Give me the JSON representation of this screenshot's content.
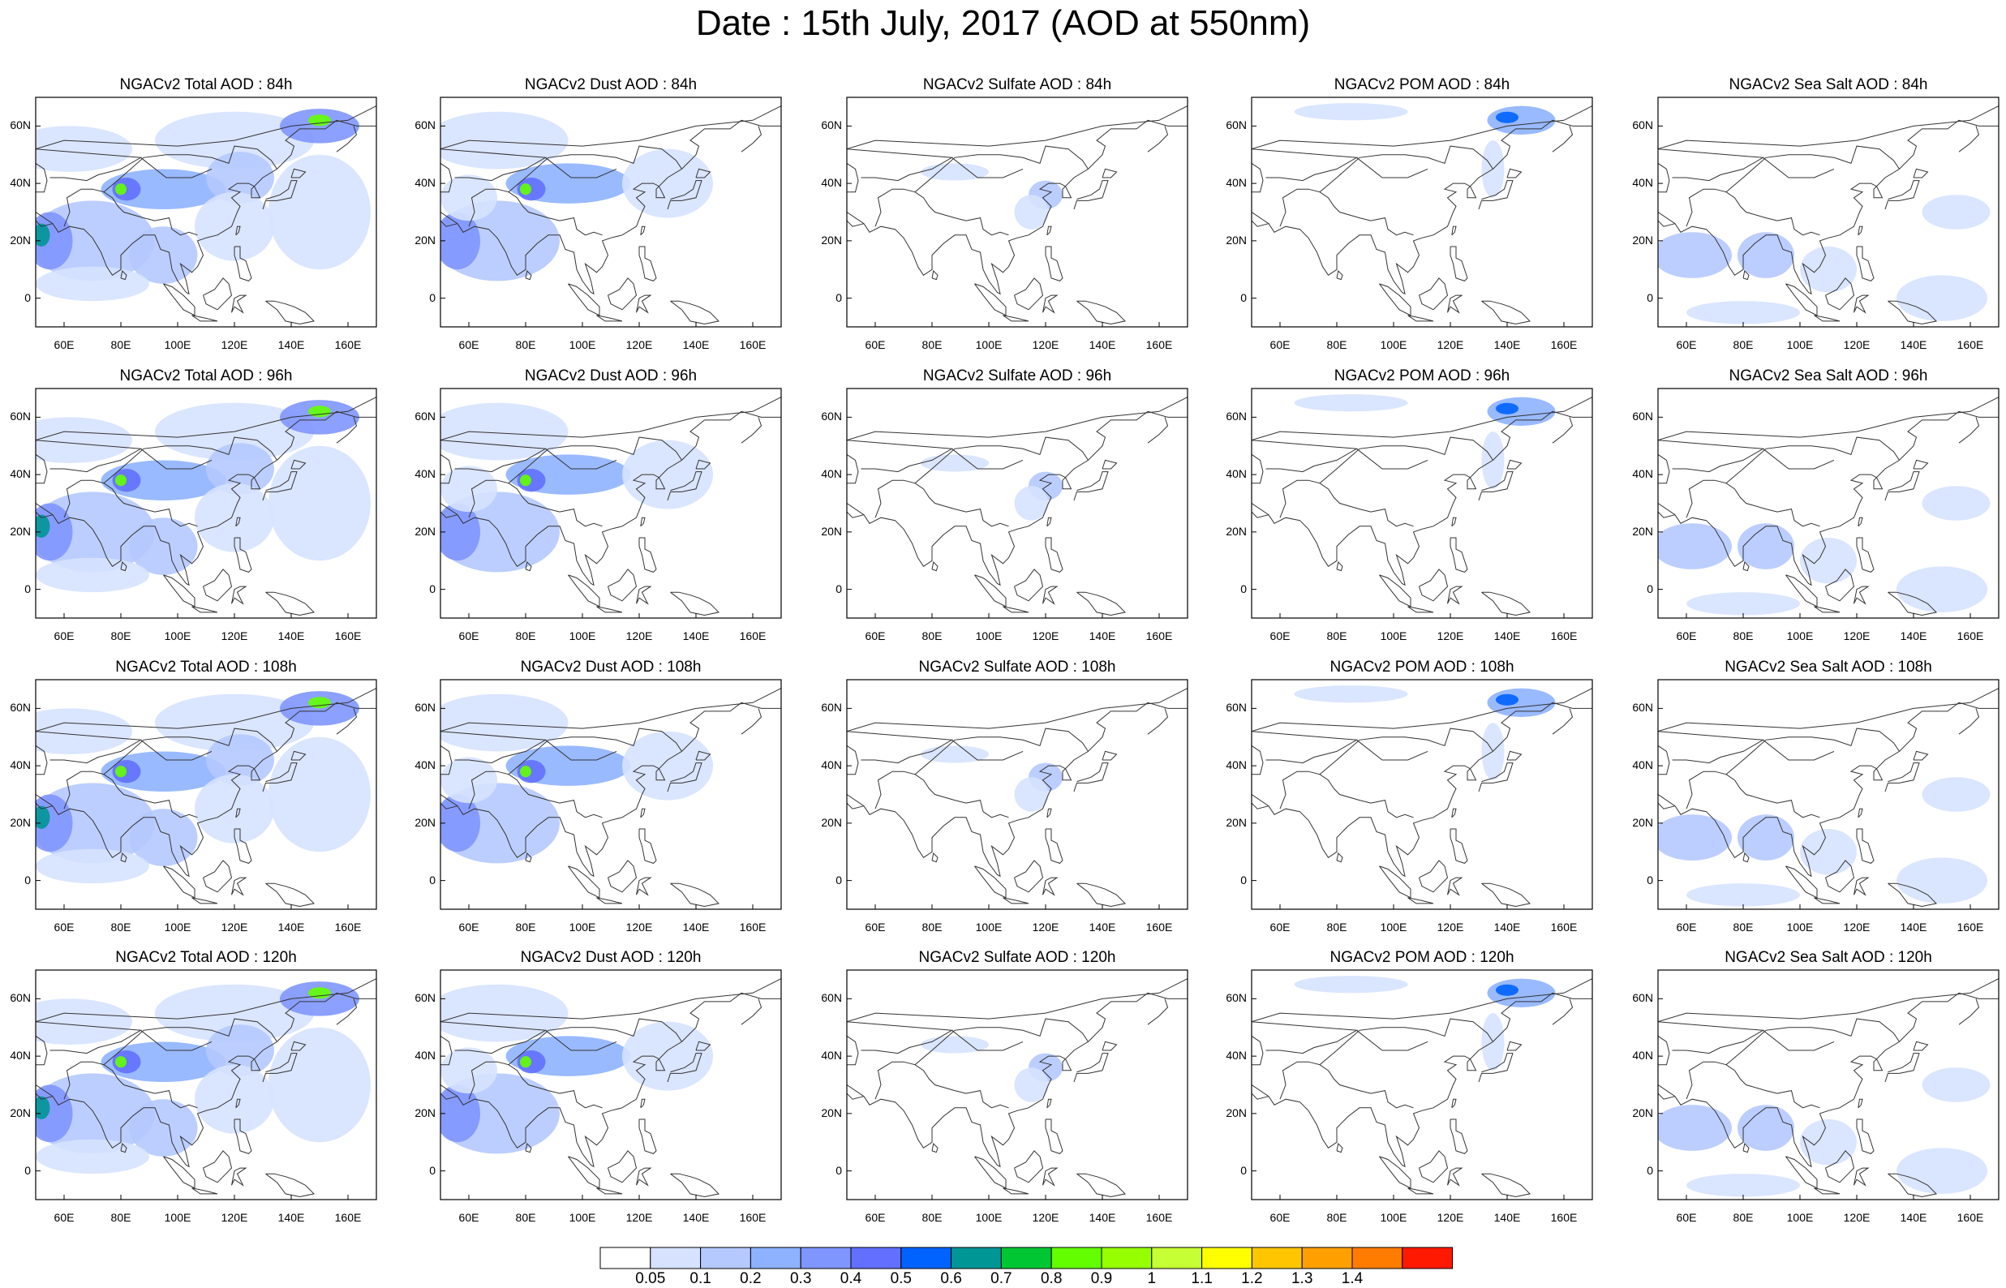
{
  "title": "Date : 15th July, 2017 (AOD at 550nm)",
  "columns": [
    "Total",
    "Dust",
    "Sulfate",
    "POM",
    "Sea Salt"
  ],
  "panels": [
    [
      "NGACv2 Total AOD : 84h",
      "NGACv2 Dust AOD : 84h",
      "NGACv2 Sulfate AOD : 84h",
      "NGACv2 POM AOD : 84h",
      "NGACv2 Sea Salt AOD : 84h"
    ],
    [
      "NGACv2 Total AOD : 96h",
      "NGACv2 Dust AOD : 96h",
      "NGACv2 Sulfate AOD : 96h",
      "NGACv2 POM AOD : 96h",
      "NGACv2 Sea Salt AOD : 96h"
    ],
    [
      "NGACv2 Total AOD : 108h",
      "NGACv2 Dust AOD : 108h",
      "NGACv2 Sulfate AOD : 108h",
      "NGACv2 POM AOD : 108h",
      "NGACv2 Sea Salt AOD : 108h"
    ],
    [
      "NGACv2 Total AOD : 120h",
      "NGACv2 Dust AOD : 120h",
      "NGACv2 Sulfate AOD : 120h",
      "NGACv2 POM AOD : 120h",
      "NGACv2 Sea Salt  AOD : 120h"
    ]
  ],
  "y_ticks": [
    "60N",
    "40N",
    "20N",
    "0"
  ],
  "x_ticks": [
    "60E",
    "80E",
    "100E",
    "120E",
    "140E",
    "160E"
  ],
  "colorbar": {
    "labels": [
      "0.05",
      "0.1",
      "0.2",
      "0.3",
      "0.4",
      "0.5",
      "0.6",
      "0.7",
      "0.8",
      "0.9",
      "1",
      "1.1",
      "1.2",
      "1.3",
      "1.4"
    ],
    "colors": [
      "#ffffff",
      "#d6e2ff",
      "#b5c9ff",
      "#8eb2ff",
      "#7f96ff",
      "#6370ff",
      "#0063ff",
      "#009696",
      "#00c633",
      "#63ff00",
      "#96ff00",
      "#c6ff33",
      "#ffff00",
      "#ffc600",
      "#ffa000",
      "#ff7c00",
      "#ff1900"
    ]
  }
}
